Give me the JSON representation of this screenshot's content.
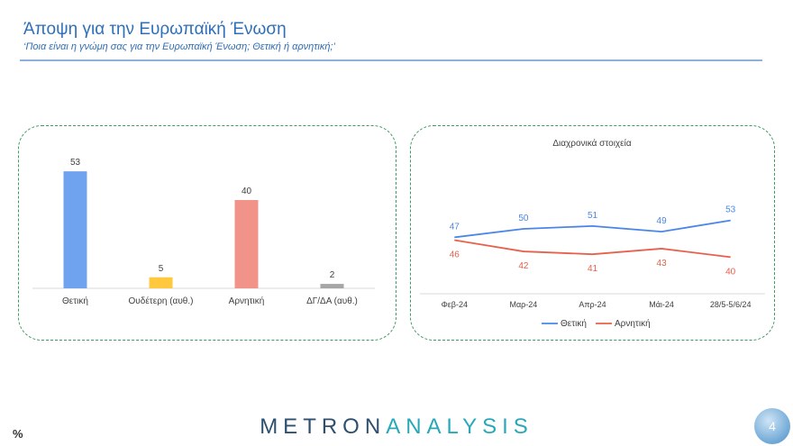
{
  "header": {
    "title": "Άποψη για την Ευρωπαϊκή Ένωση",
    "subtitle": "‘Ποια είναι η γνώμη σας για την Ευρωπαϊκή Ένωση; Θετική ή αρνητική;’"
  },
  "chart_data": [
    {
      "type": "bar",
      "title": "",
      "categories": [
        "Θετική",
        "Ουδέτερη (αυθ.)",
        "Αρνητική",
        "ΔΓ/ΔΑ (αυθ.)"
      ],
      "values": [
        53,
        5,
        40,
        2
      ],
      "colors": [
        "#6fa3ef",
        "#ffc83d",
        "#f2938a",
        "#a6a6a6"
      ],
      "ylim": [
        0,
        60
      ],
      "grid": false,
      "data_labels": true
    },
    {
      "type": "line",
      "title": "Διαχρονικά στοιχεία",
      "x": [
        "Φεβ-24",
        "Μαρ-24",
        "Απρ-24",
        "Μάι-24",
        "28/5-5/6/24"
      ],
      "series": [
        {
          "name": "Θετική",
          "values": [
            47,
            50,
            51,
            49,
            53
          ],
          "color": "#4a86e8"
        },
        {
          "name": "Αρνητική",
          "values": [
            46,
            42,
            41,
            43,
            40
          ],
          "color": "#e8604c"
        }
      ],
      "ylim": [
        20,
        80
      ],
      "grid": false,
      "legend": "bottom"
    }
  ],
  "footer": {
    "unit": "%",
    "logo_left": "METRON",
    "logo_right": "ANALYSIS",
    "page_number": "4"
  }
}
